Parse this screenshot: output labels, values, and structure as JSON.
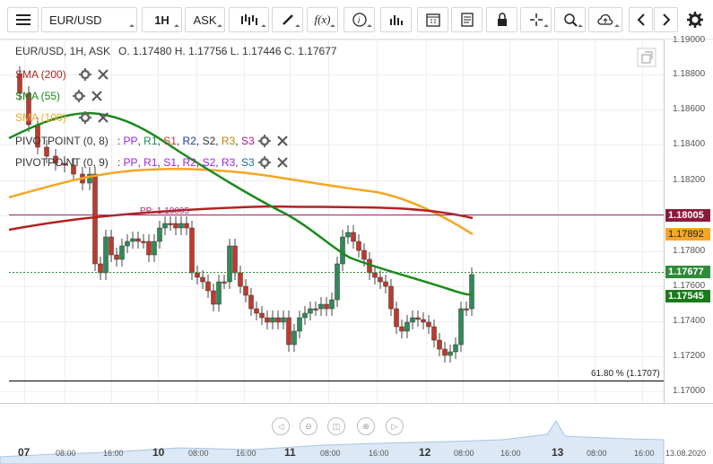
{
  "toolbar": {
    "symbol": "EUR/USD",
    "timeframe": "1H",
    "price_side": "ASK",
    "icons": [
      "menu-icon",
      "bars-icon",
      "pencil-icon",
      "fx-icon",
      "info-icon",
      "volume-icon",
      "calendar-icon",
      "note-icon",
      "lock-icon",
      "crosshair-icon",
      "zoom-icon",
      "cloud-upload-icon",
      "chevron-left-icon",
      "chevron-right-icon",
      "gear-icon"
    ]
  },
  "header": {
    "instrument": "EUR/USD, 1H, ASK",
    "ohlc": "O. 1.17480 H. 1.17756 L. 1.17446 C. 1.17677"
  },
  "indicators": [
    {
      "label": "SMA (200)",
      "color": "#b22222"
    },
    {
      "label": "SMA (55)",
      "color": "#1a8a1a"
    },
    {
      "label": "SMA (100)",
      "color": "#f5a623"
    }
  ],
  "pivots": [
    {
      "label": "PIVOTPOINT (0, 8)",
      "levels": [
        "PP",
        "R1",
        "S1",
        "R2",
        "S2",
        "R3",
        "S3"
      ]
    },
    {
      "label": "PIVOTPOINT (0, 9)",
      "levels": [
        "PP",
        "R1",
        "S1",
        "R2",
        "S2",
        "R3",
        "S3"
      ]
    }
  ],
  "pp_line_label": "PP: 1.18005",
  "fib_label": "61.80 % (1.1707)",
  "y_axis": [
    "1.19000",
    "1.18800",
    "1.18600",
    "1.18400",
    "1.18200",
    "1.17800",
    "1.17600",
    "1.17400",
    "1.17200",
    "1.17000"
  ],
  "price_labels": [
    {
      "text": "1.18005",
      "color": "#8b1a3a"
    },
    {
      "text": "1.17892",
      "color": "#f5a623"
    },
    {
      "text": "1.17677",
      "color": "#2e8b3a"
    },
    {
      "text": "1.17545",
      "color": "#1a7a1a"
    }
  ],
  "x_axis": {
    "days": [
      "07",
      "10",
      "11",
      "12",
      "13"
    ],
    "times": [
      "08:00",
      "16:00",
      "08:00",
      "16:00",
      "08:00",
      "16:00",
      "08:00",
      "16:00",
      "08:00",
      "16:00"
    ],
    "date_end": "13.08.2020"
  },
  "colors": {
    "bull": "#2e8b57",
    "bear": "#c0392b",
    "sma200": "#b22222",
    "sma55": "#1a8a1a",
    "sma100": "#f5a623"
  }
}
